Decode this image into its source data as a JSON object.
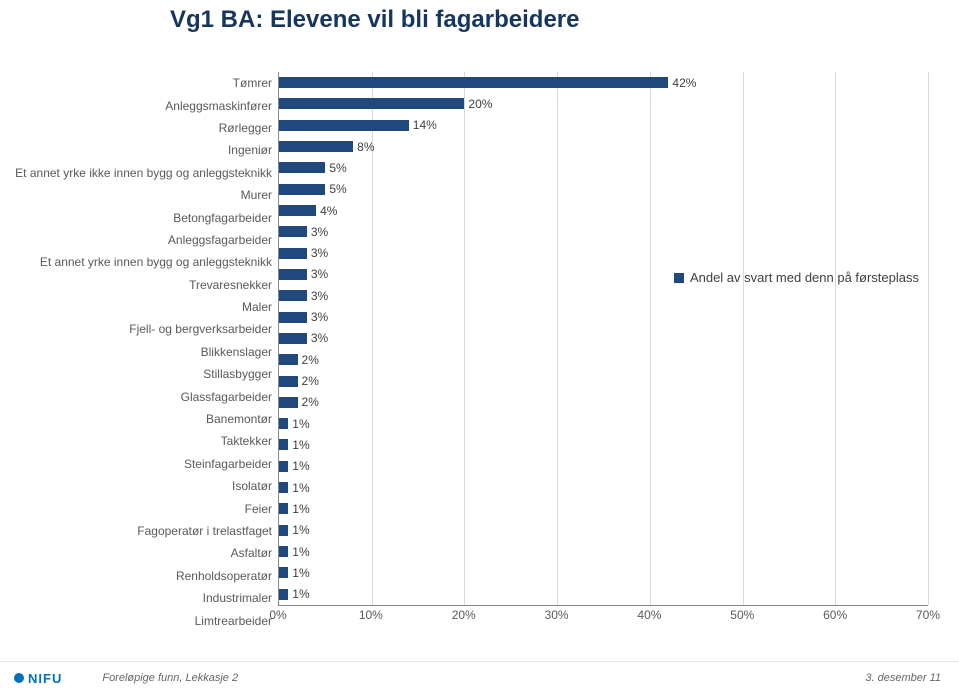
{
  "title": "Vg1 BA: Elevene vil bli fagarbeidere",
  "chart": {
    "type": "bar_horizontal",
    "bar_color": "#1f497d",
    "background_color": "#ffffff",
    "grid_color": "#d9d9d9",
    "label_fontsize": 12,
    "title_fontsize": 24,
    "title_color": "#17365c",
    "x": {
      "min": 0,
      "max": 70,
      "step": 10,
      "unit": "%"
    },
    "categories": [
      {
        "label": "Tømrer",
        "value": 42
      },
      {
        "label": "Anleggsmaskinfører",
        "value": 20
      },
      {
        "label": "Rørlegger",
        "value": 14
      },
      {
        "label": "Ingeniør",
        "value": 8
      },
      {
        "label": "Et annet yrke ikke innen bygg og anleggsteknikk",
        "value": 5
      },
      {
        "label": "Murer",
        "value": 5
      },
      {
        "label": "Betongfagarbeider",
        "value": 4
      },
      {
        "label": "Anleggsfagarbeider",
        "value": 3
      },
      {
        "label": "Et annet yrke innen bygg og anleggsteknikk",
        "value": 3
      },
      {
        "label": "Trevaresnekker",
        "value": 3
      },
      {
        "label": "Maler",
        "value": 3
      },
      {
        "label": "Fjell- og bergverksarbeider",
        "value": 3
      },
      {
        "label": "Blikkenslager",
        "value": 3
      },
      {
        "label": "Stillasbygger",
        "value": 2
      },
      {
        "label": "Glassfagarbeider",
        "value": 2
      },
      {
        "label": "Banemontør",
        "value": 2
      },
      {
        "label": "Taktekker",
        "value": 1
      },
      {
        "label": "Steinfagarbeider",
        "value": 1
      },
      {
        "label": "Isolatør",
        "value": 1
      },
      {
        "label": "Feier",
        "value": 1
      },
      {
        "label": "Fagoperatør i trelastfaget",
        "value": 1
      },
      {
        "label": "Asfaltør",
        "value": 1
      },
      {
        "label": "Renholdsoperatør",
        "value": 1
      },
      {
        "label": "Industrimaler",
        "value": 1
      },
      {
        "label": "Limtrearbeider",
        "value": 1
      }
    ],
    "legend": {
      "label": "Andel av svart med denn på førsteplass",
      "swatch_color": "#1f497d"
    }
  },
  "footer": {
    "logo_text": "NIFU",
    "logo_color": "#0070c0",
    "left": "Foreløpige funn, Lekkasje 2",
    "right": "3. desember   11"
  }
}
